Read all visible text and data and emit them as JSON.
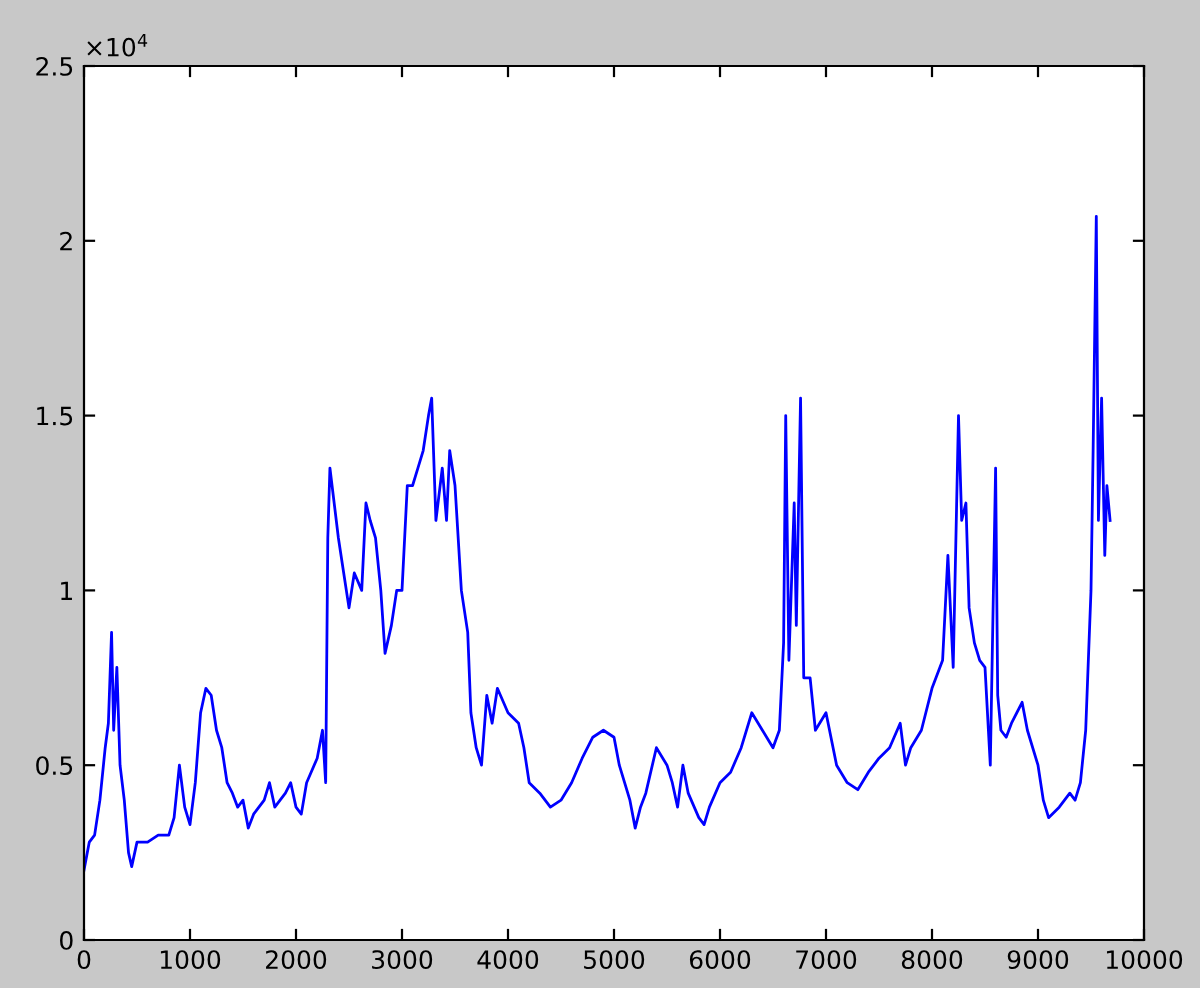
{
  "chart_data": {
    "type": "line",
    "annotations": [
      "×10$^{4}$"
    ],
    "x": [
      0,
      50,
      100,
      150,
      200,
      230,
      260,
      280,
      310,
      340,
      380,
      420,
      450,
      500,
      600,
      700,
      800,
      850,
      900,
      950,
      1000,
      1050,
      1100,
      1150,
      1200,
      1250,
      1300,
      1350,
      1400,
      1450,
      1500,
      1550,
      1600,
      1700,
      1750,
      1800,
      1900,
      1950,
      2000,
      2050,
      2100,
      2200,
      2250,
      2280,
      2300,
      2320,
      2400,
      2450,
      2500,
      2550,
      2620,
      2660,
      2700,
      2750,
      2800,
      2840,
      2900,
      2950,
      3000,
      3050,
      3100,
      3150,
      3200,
      3250,
      3280,
      3320,
      3380,
      3420,
      3450,
      3500,
      3560,
      3620,
      3650,
      3700,
      3750,
      3800,
      3850,
      3900,
      4000,
      4100,
      4150,
      4200,
      4300,
      4400,
      4500,
      4600,
      4700,
      4800,
      4900,
      5000,
      5050,
      5100,
      5150,
      5200,
      5250,
      5300,
      5400,
      5500,
      5550,
      5600,
      5650,
      5700,
      5800,
      5850,
      5900,
      6000,
      6100,
      6200,
      6300,
      6400,
      6500,
      6560,
      6600,
      6620,
      6650,
      6700,
      6720,
      6760,
      6790,
      6850,
      6900,
      7000,
      7100,
      7200,
      7300,
      7400,
      7500,
      7600,
      7700,
      7750,
      7800,
      7900,
      8000,
      8100,
      8150,
      8200,
      8250,
      8280,
      8320,
      8350,
      8400,
      8450,
      8500,
      8550,
      8600,
      8620,
      8650,
      8700,
      8750,
      8850,
      8900,
      9000,
      9050,
      9100,
      9200,
      9300,
      9350,
      9400,
      9450,
      9500,
      9520,
      9550,
      9570,
      9600,
      9630,
      9650,
      9680
    ],
    "series": [
      {
        "color": "#0000ff",
        "values": [
          0.2,
          0.28,
          0.3,
          0.4,
          0.55,
          0.62,
          0.88,
          0.6,
          0.78,
          0.5,
          0.4,
          0.25,
          0.21,
          0.28,
          0.28,
          0.3,
          0.3,
          0.35,
          0.5,
          0.38,
          0.33,
          0.45,
          0.65,
          0.72,
          0.7,
          0.6,
          0.55,
          0.45,
          0.42,
          0.38,
          0.4,
          0.32,
          0.36,
          0.4,
          0.45,
          0.38,
          0.42,
          0.45,
          0.38,
          0.36,
          0.45,
          0.52,
          0.6,
          0.45,
          1.15,
          1.35,
          1.15,
          1.05,
          0.95,
          1.05,
          1.0,
          1.25,
          1.2,
          1.15,
          1.0,
          0.82,
          0.9,
          1.0,
          1.0,
          1.3,
          1.3,
          1.35,
          1.4,
          1.5,
          1.55,
          1.2,
          1.35,
          1.2,
          1.4,
          1.3,
          1.0,
          0.88,
          0.65,
          0.55,
          0.5,
          0.7,
          0.62,
          0.72,
          0.65,
          0.62,
          0.55,
          0.45,
          0.42,
          0.38,
          0.4,
          0.45,
          0.52,
          0.58,
          0.6,
          0.58,
          0.5,
          0.45,
          0.4,
          0.32,
          0.38,
          0.42,
          0.55,
          0.5,
          0.45,
          0.38,
          0.5,
          0.42,
          0.35,
          0.33,
          0.38,
          0.45,
          0.48,
          0.55,
          0.65,
          0.6,
          0.55,
          0.6,
          0.85,
          1.5,
          0.8,
          1.25,
          0.9,
          1.55,
          0.75,
          0.75,
          0.6,
          0.65,
          0.5,
          0.45,
          0.43,
          0.48,
          0.52,
          0.55,
          0.62,
          0.5,
          0.55,
          0.6,
          0.72,
          0.8,
          1.1,
          0.78,
          1.5,
          1.2,
          1.25,
          0.95,
          0.85,
          0.8,
          0.78,
          0.5,
          1.35,
          0.7,
          0.6,
          0.58,
          0.62,
          0.68,
          0.6,
          0.5,
          0.4,
          0.35,
          0.38,
          0.42,
          0.4,
          0.45,
          0.6,
          1.0,
          1.4,
          2.07,
          1.2,
          1.55,
          1.1,
          1.3,
          1.2
        ]
      }
    ],
    "xlim": [
      0,
      10000
    ],
    "xticks": [
      0,
      1000,
      2000,
      3000,
      4000,
      5000,
      6000,
      7000,
      8000,
      9000,
      10000
    ],
    "ylim": [
      0,
      2.5
    ],
    "yticks": [
      0,
      0.5,
      1,
      1.5,
      2,
      2.5
    ],
    "grid": false,
    "marker": "none",
    "line_style": "solid"
  }
}
